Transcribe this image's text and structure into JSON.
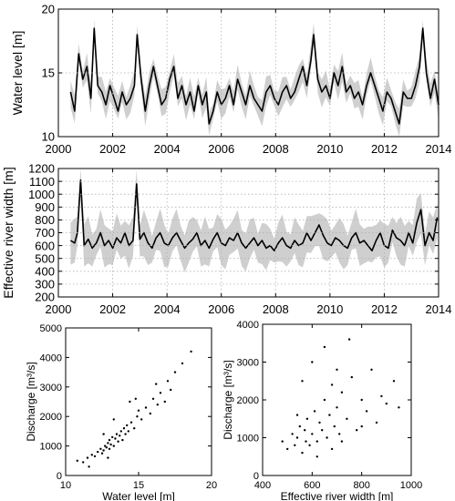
{
  "chart_data": [
    {
      "type": "line",
      "id": "water_level",
      "ylabel": "Water level [m]",
      "xlim": [
        2000,
        2014
      ],
      "ylim": [
        10,
        20
      ],
      "xticks": [
        "2000",
        "2002",
        "2004",
        "2006",
        "2008",
        "2010",
        "2012",
        "2014"
      ],
      "yticks": [
        "10",
        "15",
        "20"
      ],
      "grid": true,
      "series": [
        {
          "role": "mean",
          "color": "#000000",
          "x": [
            2000.45,
            2000.6,
            2000.75,
            2000.9,
            2001.05,
            2001.2,
            2001.32,
            2001.45,
            2001.6,
            2001.75,
            2001.9,
            2002.05,
            2002.2,
            2002.35,
            2002.5,
            2002.65,
            2002.8,
            2002.9,
            2003.05,
            2003.2,
            2003.35,
            2003.5,
            2003.65,
            2003.8,
            2003.95,
            2004.1,
            2004.25,
            2004.4,
            2004.55,
            2004.7,
            2004.85,
            2005.0,
            2005.15,
            2005.3,
            2005.45,
            2005.55,
            2005.7,
            2005.85,
            2006.0,
            2006.15,
            2006.3,
            2006.45,
            2006.6,
            2006.75,
            2006.9,
            2007.05,
            2007.2,
            2007.35,
            2007.5,
            2007.65,
            2007.8,
            2007.95,
            2008.1,
            2008.25,
            2008.4,
            2008.55,
            2008.7,
            2008.85,
            2009.0,
            2009.15,
            2009.3,
            2009.4,
            2009.55,
            2009.7,
            2009.85,
            2010.0,
            2010.15,
            2010.3,
            2010.45,
            2010.6,
            2010.75,
            2010.9,
            2011.05,
            2011.2,
            2011.35,
            2011.5,
            2011.65,
            2011.8,
            2011.95,
            2012.1,
            2012.25,
            2012.4,
            2012.55,
            2012.7,
            2012.85,
            2013.0,
            2013.15,
            2013.3,
            2013.42,
            2013.55,
            2013.7,
            2013.85,
            2014.0
          ],
          "y": [
            13.5,
            12.0,
            16.5,
            14.5,
            15.5,
            13.0,
            18.5,
            14.0,
            13.5,
            12.5,
            14.0,
            13.0,
            12.0,
            13.5,
            12.5,
            13.0,
            14.0,
            18.0,
            14.5,
            12.0,
            14.0,
            15.5,
            14.0,
            12.5,
            13.0,
            14.5,
            15.5,
            13.0,
            14.0,
            12.5,
            13.5,
            12.0,
            14.0,
            12.5,
            13.5,
            11.0,
            12.0,
            13.5,
            12.5,
            13.0,
            14.0,
            12.5,
            14.5,
            13.5,
            12.5,
            14.0,
            13.0,
            12.5,
            12.0,
            13.5,
            14.0,
            13.0,
            12.5,
            13.5,
            14.0,
            13.0,
            13.5,
            14.5,
            15.5,
            14.0,
            16.0,
            18.0,
            14.5,
            13.5,
            14.0,
            13.0,
            15.0,
            14.0,
            15.5,
            13.5,
            14.0,
            13.0,
            13.5,
            12.5,
            14.0,
            15.0,
            14.0,
            13.0,
            12.0,
            13.5,
            13.0,
            12.0,
            11.0,
            13.5,
            13.0,
            13.0,
            14.0,
            15.5,
            18.5,
            15.0,
            13.0,
            14.5,
            12.5
          ]
        },
        {
          "role": "uncertainty band",
          "color": "#cfcfcf",
          "half_width": 0.9
        }
      ]
    },
    {
      "type": "line",
      "id": "effective_width",
      "ylabel": "Effective river width [m]",
      "xlim": [
        2000,
        2014
      ],
      "ylim": [
        200,
        1200
      ],
      "xticks": [
        "2000",
        "2002",
        "2004",
        "2006",
        "2008",
        "2010",
        "2012",
        "2014"
      ],
      "yticks": [
        "200",
        "300",
        "400",
        "500",
        "600",
        "700",
        "800",
        "900",
        "1000",
        "1100",
        "1200"
      ],
      "grid": true,
      "series": [
        {
          "role": "mean",
          "color": "#000000",
          "x": [
            2000.45,
            2000.6,
            2000.7,
            2000.82,
            2000.95,
            2001.1,
            2001.25,
            2001.4,
            2001.55,
            2001.7,
            2001.85,
            2002.0,
            2002.15,
            2002.3,
            2002.45,
            2002.6,
            2002.75,
            2002.88,
            2003.0,
            2003.15,
            2003.3,
            2003.45,
            2003.6,
            2003.75,
            2003.9,
            2004.05,
            2004.2,
            2004.35,
            2004.5,
            2004.65,
            2004.8,
            2004.95,
            2005.1,
            2005.25,
            2005.4,
            2005.55,
            2005.7,
            2005.85,
            2006.0,
            2006.15,
            2006.3,
            2006.45,
            2006.6,
            2006.75,
            2006.9,
            2007.05,
            2007.2,
            2007.35,
            2007.5,
            2007.65,
            2007.8,
            2007.95,
            2008.1,
            2008.25,
            2008.4,
            2008.55,
            2008.7,
            2008.85,
            2009.0,
            2009.15,
            2009.3,
            2009.45,
            2009.6,
            2009.75,
            2009.9,
            2010.05,
            2010.2,
            2010.35,
            2010.5,
            2010.65,
            2010.8,
            2010.95,
            2011.1,
            2011.25,
            2011.4,
            2011.55,
            2011.7,
            2011.85,
            2012.0,
            2012.15,
            2012.3,
            2012.45,
            2012.6,
            2012.75,
            2012.9,
            2013.05,
            2013.2,
            2013.35,
            2013.5,
            2013.65,
            2013.8,
            2013.95
          ],
          "y": [
            640,
            620,
            700,
            1110,
            600,
            650,
            580,
            620,
            700,
            600,
            640,
            580,
            660,
            620,
            700,
            600,
            640,
            1080,
            650,
            700,
            620,
            580,
            660,
            700,
            620,
            600,
            660,
            700,
            640,
            580,
            620,
            650,
            700,
            600,
            640,
            580,
            650,
            700,
            620,
            600,
            660,
            640,
            700,
            620,
            580,
            620,
            660,
            600,
            640,
            580,
            600,
            560,
            620,
            660,
            600,
            580,
            640,
            600,
            620,
            700,
            640,
            700,
            760,
            680,
            620,
            600,
            660,
            640,
            600,
            580,
            660,
            700,
            620,
            640,
            600,
            560,
            640,
            700,
            600,
            580,
            720,
            660,
            640,
            600,
            700,
            620,
            780,
            880,
            600,
            700,
            640,
            820
          ]
        },
        {
          "role": "uncertainty band",
          "color": "#cfcfcf",
          "half_width": 140
        }
      ]
    },
    {
      "type": "scatter",
      "id": "discharge_vs_water_level",
      "xlabel": "Water level [m]",
      "ylabel": "Discharge [m³/s]",
      "xlim": [
        10,
        20
      ],
      "ylim": [
        0,
        5000
      ],
      "xticks": [
        "10",
        "15",
        "20"
      ],
      "yticks": [
        "0",
        "1000",
        "2000",
        "3000",
        "4000",
        "5000"
      ],
      "grid": false,
      "marker_color": "#000000",
      "points_x": [
        10.8,
        11.2,
        11.5,
        11.8,
        12.0,
        12.2,
        12.4,
        12.5,
        12.6,
        12.7,
        12.8,
        12.9,
        13.0,
        13.0,
        13.1,
        13.2,
        13.3,
        13.4,
        13.5,
        13.6,
        13.7,
        13.8,
        13.9,
        14.0,
        14.1,
        14.2,
        14.3,
        14.5,
        14.7,
        14.9,
        15.0,
        15.2,
        15.5,
        15.8,
        16.0,
        16.3,
        16.5,
        16.8,
        17.0,
        17.2,
        17.5,
        18.0,
        18.6,
        12.6,
        13.3,
        14.8,
        16.2,
        11.6,
        12.9,
        14.4
      ],
      "points_y": [
        500,
        450,
        600,
        700,
        650,
        800,
        900,
        750,
        850,
        1000,
        950,
        1100,
        900,
        1200,
        1050,
        1300,
        1000,
        1250,
        1400,
        1150,
        1350,
        1500,
        1200,
        1600,
        1400,
        1700,
        1500,
        1800,
        1600,
        2000,
        2200,
        1900,
        2300,
        2100,
        2600,
        2400,
        2800,
        2500,
        3200,
        2900,
        3500,
        3800,
        4200,
        1400,
        1900,
        2600,
        3100,
        300,
        600,
        2500
      ]
    },
    {
      "type": "scatter",
      "id": "discharge_vs_effective_width",
      "xlabel": "Effective river width [m]",
      "ylabel": "Discharge [m³/s]",
      "xlim": [
        400,
        1000
      ],
      "ylim": [
        0,
        4000
      ],
      "xticks": [
        "400",
        "600",
        "800",
        "1000"
      ],
      "yticks": [
        "0",
        "1000",
        "2000",
        "3000",
        "4000"
      ],
      "grid": false,
      "marker_color": "#000000",
      "points_x": [
        480,
        500,
        520,
        530,
        540,
        550,
        560,
        570,
        575,
        580,
        590,
        600,
        610,
        620,
        630,
        640,
        650,
        660,
        670,
        680,
        690,
        700,
        710,
        720,
        740,
        760,
        780,
        800,
        820,
        840,
        860,
        880,
        900,
        930,
        950,
        600,
        650,
        700,
        750,
        560,
        620,
        680,
        720,
        800,
        540
      ],
      "points_y": [
        900,
        700,
        1100,
        800,
        1000,
        1300,
        600,
        1200,
        900,
        1500,
        800,
        1100,
        1700,
        900,
        1400,
        1200,
        2000,
        1000,
        1600,
        2400,
        1300,
        1800,
        1100,
        2200,
        1500,
        2600,
        1200,
        2000,
        1700,
        2800,
        1400,
        2100,
        1900,
        2500,
        1800,
        3000,
        3400,
        2800,
        3600,
        2500,
        500,
        700,
        900,
        1300,
        1600
      ]
    }
  ]
}
